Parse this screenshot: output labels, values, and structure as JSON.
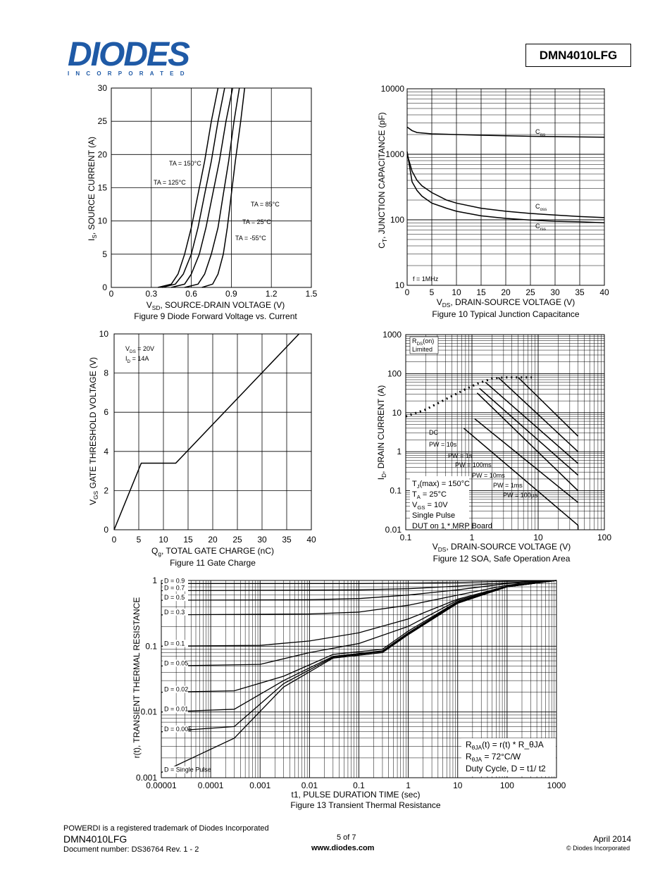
{
  "header": {
    "logo_text": "DIODES",
    "logo_sub": "INCORPORATED",
    "part_number": "DMN4010LFG"
  },
  "footer": {
    "trademark": "POWERDI is a registered trademark of Diodes Incorporated",
    "part": "DMN4010LFG",
    "doc": "Document number: DS36764  Rev. 1 - 2",
    "page": "5 of 7",
    "url": "www.diodes.com",
    "date": "April 2014",
    "copyright": "© Diodes Incorporated"
  },
  "chart_data": [
    {
      "type": "line",
      "title": "Figure 9 Diode Forward Voltage vs. Current",
      "xlabel": "V_SD, SOURCE-DRAIN VOLTAGE (V)",
      "ylabel": "I_S, SOURCE CURRENT (A)",
      "xlim": [
        0,
        1.5
      ],
      "ylim": [
        0,
        30
      ],
      "xticks": [
        "0",
        "0.3",
        "0.6",
        "0.9",
        "1.2",
        "1.5"
      ],
      "yticks": [
        "0",
        "5",
        "10",
        "15",
        "20",
        "25",
        "30"
      ],
      "grid": true,
      "series": [
        {
          "name": "TA = 150°C",
          "x": [
            0.35,
            0.45,
            0.5,
            0.55,
            0.6,
            0.65,
            0.7,
            0.75,
            0.8
          ],
          "y": [
            0,
            0.5,
            2,
            5,
            9,
            14,
            19,
            25,
            30
          ]
        },
        {
          "name": "TA = 125°C",
          "x": [
            0.38,
            0.48,
            0.54,
            0.6,
            0.65,
            0.7,
            0.75,
            0.8,
            0.85
          ],
          "y": [
            0,
            0.5,
            2,
            5,
            9,
            14,
            19,
            25,
            30
          ]
        },
        {
          "name": "TA = 85°C",
          "x": [
            0.45,
            0.55,
            0.6,
            0.66,
            0.71,
            0.76,
            0.81,
            0.86,
            0.91
          ],
          "y": [
            0,
            0.5,
            2,
            5,
            9,
            14,
            19,
            25,
            30
          ]
        },
        {
          "name": "TA = 25°C",
          "x": [
            0.55,
            0.65,
            0.7,
            0.75,
            0.8,
            0.84,
            0.88,
            0.92,
            0.96
          ],
          "y": [
            0,
            0.5,
            2,
            5,
            9,
            14,
            19,
            25,
            30
          ]
        },
        {
          "name": "TA = -55°C",
          "x": [
            0.68,
            0.76,
            0.8,
            0.84,
            0.87,
            0.9,
            0.93,
            0.97,
            1.0
          ],
          "y": [
            0,
            0.5,
            2,
            5,
            9,
            14,
            19,
            25,
            30
          ]
        }
      ]
    },
    {
      "type": "line",
      "title": "Figure 10 Typical Junction Capacitance",
      "xlabel": "V_DS, DRAIN-SOURCE VOLTAGE (V)",
      "ylabel": "C_T, JUNCTION CAPACITANCE (pF)",
      "xlim": [
        0,
        40
      ],
      "ylim": [
        10,
        10000
      ],
      "yscale": "log",
      "xticks": [
        "0",
        "5",
        "10",
        "15",
        "20",
        "25",
        "30",
        "35",
        "40"
      ],
      "yticks": [
        "10",
        "100",
        "1000",
        "10000"
      ],
      "annotation": "f = 1MHz",
      "series": [
        {
          "name": "Ciss",
          "x": [
            0,
            1,
            2,
            5,
            10,
            15,
            20,
            25,
            30,
            35,
            40
          ],
          "y": [
            2600,
            2300,
            2150,
            2050,
            2000,
            1950,
            1920,
            1880,
            1860,
            1840,
            1820
          ]
        },
        {
          "name": "Coss",
          "x": [
            0,
            1,
            2,
            3,
            5,
            8,
            10,
            15,
            20,
            25,
            30,
            35,
            40
          ],
          "y": [
            1000,
            550,
            400,
            330,
            260,
            200,
            180,
            150,
            135,
            125,
            118,
            112,
            108
          ]
        },
        {
          "name": "Crss",
          "x": [
            0,
            1,
            2,
            3,
            5,
            8,
            10,
            15,
            20,
            25,
            30,
            35,
            40
          ],
          "y": [
            1100,
            380,
            280,
            230,
            180,
            150,
            135,
            115,
            105,
            99,
            95,
            93,
            90
          ]
        }
      ]
    },
    {
      "type": "line",
      "title": "Figure 11 Gate Charge",
      "xlabel": "Q_g, TOTAL GATE CHARGE (nC)",
      "ylabel": "V_GS GATE THRESHOLD VOLTAGE (V)",
      "xlim": [
        0,
        40
      ],
      "ylim": [
        0,
        10
      ],
      "xticks": [
        "0",
        "5",
        "10",
        "15",
        "20",
        "25",
        "30",
        "35",
        "40"
      ],
      "yticks": [
        "0",
        "2",
        "4",
        "6",
        "8",
        "10"
      ],
      "annotations": [
        "V_DS = 20V",
        "I_D = 14A"
      ],
      "series": [
        {
          "name": "",
          "x": [
            0,
            5.5,
            12.5,
            37.5
          ],
          "y": [
            0,
            3.4,
            3.4,
            10
          ]
        }
      ]
    },
    {
      "type": "line",
      "title": "Figure 12 SOA, Safe Operation Area",
      "xlabel": "V_DS, DRAIN-SOURCE VOLTAGE (V)",
      "ylabel": "I_D, DRAIN CURRENT (A)",
      "xlim": [
        0.1,
        100
      ],
      "ylim": [
        0.01,
        1000
      ],
      "xscale": "log",
      "yscale": "log",
      "xticks": [
        "0.1",
        "1",
        "10",
        "100"
      ],
      "yticks": [
        "0.01",
        "0.1",
        "1",
        "10",
        "100",
        "1000"
      ],
      "annotations": [
        "R_DS(on) Limited",
        "T_J(max) = 150°C",
        "T_A = 25°C",
        "V_GS = 10V",
        "Single Pulse",
        "DUT on 1 * MRP Board"
      ],
      "series": [
        {
          "name": "R_DS(on) Limited",
          "x": [
            0.1,
            0.2,
            0.4,
            0.8,
            1.2,
            2,
            3,
            5,
            8
          ],
          "y": [
            8,
            12,
            22,
            40,
            55,
            75,
            80,
            80,
            80
          ]
        },
        {
          "name": "DC",
          "x": [
            0.75,
            40
          ],
          "y": [
            4,
            0.013
          ]
        },
        {
          "name": "PW = 10s",
          "x": [
            1.1,
            40
          ],
          "y": [
            7,
            0.05
          ]
        },
        {
          "name": "PW = 1s",
          "x": [
            1.2,
            40
          ],
          "y": [
            32,
            0.1
          ]
        },
        {
          "name": "PW = 100ms",
          "x": [
            1.3,
            40
          ],
          "y": [
            42,
            0.25
          ]
        },
        {
          "name": "PW = 10ms",
          "x": [
            1.6,
            40
          ],
          "y": [
            60,
            0.5
          ]
        },
        {
          "name": "PW = 1ms",
          "x": [
            2.5,
            40
          ],
          "y": [
            80,
            1
          ]
        },
        {
          "name": "PW = 100µs",
          "x": [
            5,
            40
          ],
          "y": [
            80,
            2.5
          ]
        }
      ]
    },
    {
      "type": "line",
      "title": "Figure 13 Transient Thermal Resistance",
      "xlabel": "t1, PULSE DURATION TIME (sec)",
      "ylabel": "r(t), TRANSIENT THERMAL RESISTANCE",
      "xlim": [
        1e-05,
        1000
      ],
      "ylim": [
        0.001,
        1
      ],
      "xscale": "log",
      "yscale": "log",
      "xticks": [
        "0.00001",
        "0.0001",
        "0.001",
        "0.01",
        "0.1",
        "1",
        "10",
        "100",
        "1000"
      ],
      "yticks": [
        "0.001",
        "0.01",
        "0.1",
        "1"
      ],
      "annotations": [
        "R_θJA(t) = r(t) * R_θJA",
        "R_θJA = 72°C/W",
        "Duty Cycle, D = t1/ t2"
      ],
      "series": [
        {
          "name": "D = 0.9",
          "x": [
            1e-05,
            0.1,
            1,
            10,
            100,
            1000
          ],
          "y": [
            0.9,
            0.9,
            0.91,
            0.93,
            0.97,
            1
          ]
        },
        {
          "name": "D = 0.7",
          "x": [
            1e-05,
            0.1,
            1,
            10,
            100,
            1000
          ],
          "y": [
            0.7,
            0.72,
            0.75,
            0.82,
            0.92,
            1
          ]
        },
        {
          "name": "D = 0.5",
          "x": [
            1e-05,
            0.01,
            0.1,
            1,
            10,
            100,
            1000
          ],
          "y": [
            0.5,
            0.51,
            0.53,
            0.6,
            0.72,
            0.9,
            1
          ]
        },
        {
          "name": "D = 0.3",
          "x": [
            1e-05,
            0.01,
            0.1,
            1,
            10,
            100,
            1000
          ],
          "y": [
            0.3,
            0.31,
            0.33,
            0.42,
            0.6,
            0.85,
            1
          ]
        },
        {
          "name": "D = 0.1",
          "x": [
            1e-05,
            0.001,
            0.01,
            0.1,
            1,
            10,
            100,
            1000
          ],
          "y": [
            0.1,
            0.103,
            0.12,
            0.16,
            0.26,
            0.52,
            0.82,
            1
          ]
        },
        {
          "name": "D = 0.05",
          "x": [
            1e-05,
            0.001,
            0.01,
            0.1,
            1,
            10,
            100,
            1000
          ],
          "y": [
            0.05,
            0.053,
            0.08,
            0.11,
            0.2,
            0.5,
            0.8,
            1
          ]
        },
        {
          "name": "D = 0.02",
          "x": [
            1e-05,
            0.0003,
            0.003,
            0.03,
            0.3,
            1,
            10,
            100,
            1000
          ],
          "y": [
            0.02,
            0.021,
            0.035,
            0.075,
            0.09,
            0.17,
            0.48,
            0.8,
            1
          ]
        },
        {
          "name": "D = 0.01",
          "x": [
            1e-05,
            0.0003,
            0.003,
            0.03,
            0.3,
            1,
            10,
            100,
            1000
          ],
          "y": [
            0.01,
            0.011,
            0.03,
            0.07,
            0.085,
            0.16,
            0.47,
            0.8,
            1
          ]
        },
        {
          "name": "D = 0.005",
          "x": [
            1e-05,
            0.0003,
            0.003,
            0.03,
            0.3,
            1,
            10,
            100,
            1000
          ],
          "y": [
            0.005,
            0.006,
            0.027,
            0.068,
            0.083,
            0.155,
            0.46,
            0.8,
            1
          ]
        },
        {
          "name": "D = Single Pulse",
          "x": [
            1e-05,
            0.0003,
            0.003,
            0.03,
            0.3,
            1,
            10,
            100,
            1000
          ],
          "y": [
            0.0012,
            0.004,
            0.024,
            0.066,
            0.08,
            0.15,
            0.45,
            0.8,
            1
          ]
        }
      ]
    }
  ]
}
